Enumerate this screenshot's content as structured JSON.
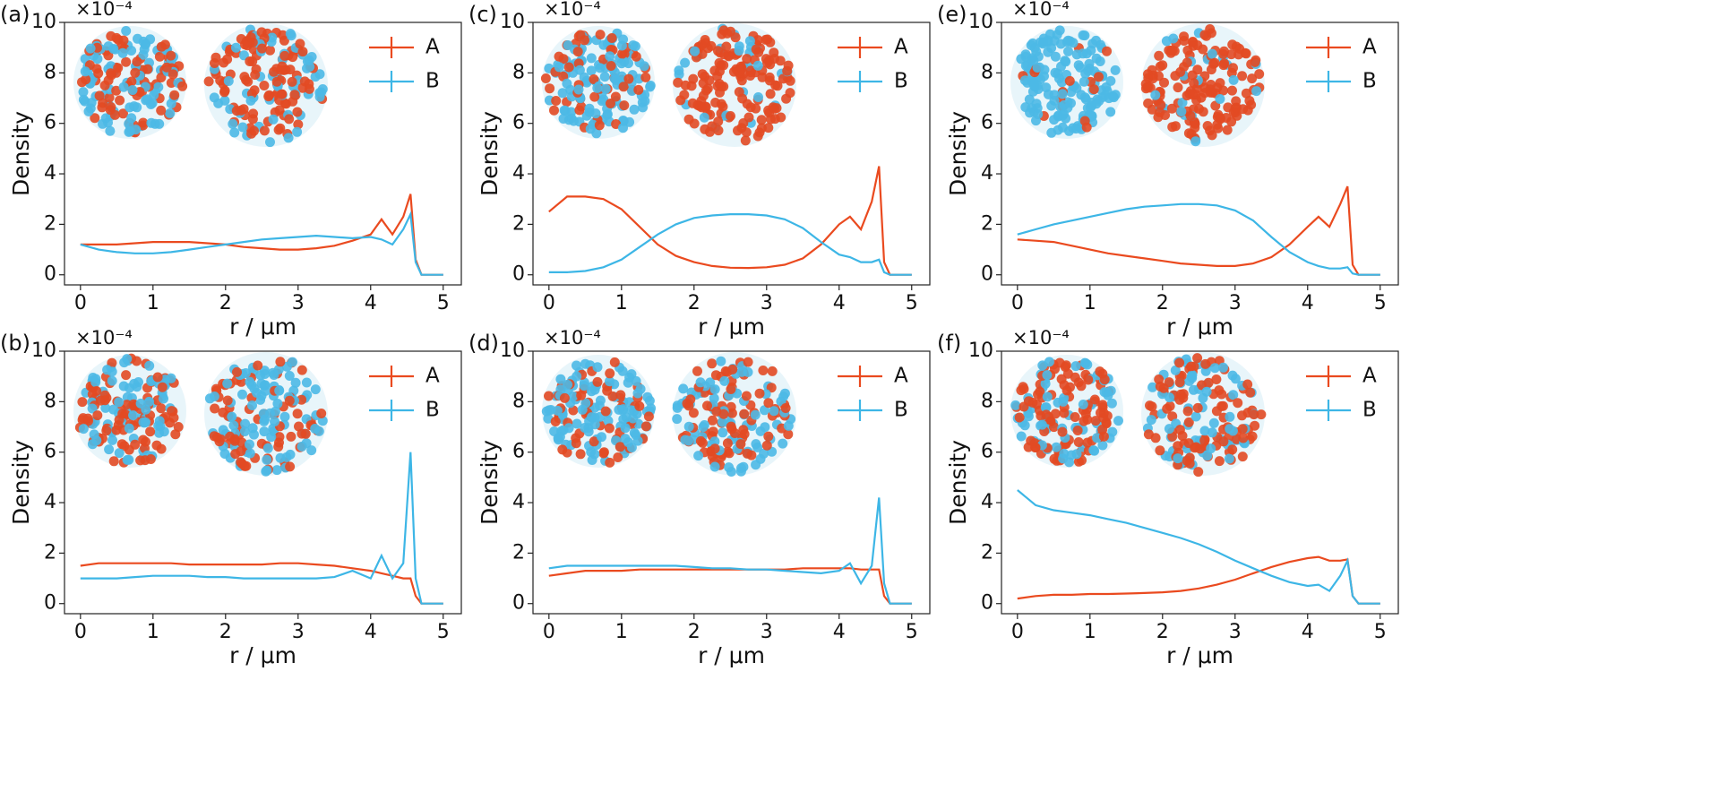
{
  "chart_data": [
    {
      "type": "line",
      "label": "(a)",
      "y_offset": "×10⁻⁴",
      "xlabel": "r / μm",
      "ylabel": "Density",
      "x": [
        0,
        0.25,
        0.5,
        0.75,
        1,
        1.25,
        1.5,
        1.75,
        2,
        2.25,
        2.5,
        2.75,
        3,
        3.25,
        3.5,
        3.75,
        4,
        4.15,
        4.3,
        4.45,
        4.55,
        4.62,
        4.7,
        5
      ],
      "series": [
        {
          "name": "A",
          "color": "#ea4a1f",
          "values": [
            1.2,
            1.2,
            1.2,
            1.25,
            1.3,
            1.3,
            1.3,
            1.25,
            1.2,
            1.1,
            1.05,
            1.0,
            1.0,
            1.05,
            1.15,
            1.35,
            1.6,
            2.2,
            1.6,
            2.3,
            3.2,
            0.6,
            0,
            0
          ]
        },
        {
          "name": "B",
          "color": "#3db6e6",
          "values": [
            1.2,
            1.0,
            0.9,
            0.85,
            0.85,
            0.9,
            1.0,
            1.1,
            1.2,
            1.3,
            1.4,
            1.45,
            1.5,
            1.55,
            1.5,
            1.45,
            1.5,
            1.4,
            1.2,
            1.8,
            2.4,
            0.5,
            0,
            0
          ]
        }
      ],
      "xlim": [
        -0.22,
        5.25
      ],
      "ylim": [
        -0.4,
        10
      ],
      "xticks": [
        0,
        1,
        2,
        3,
        4,
        5
      ],
      "yticks": [
        0,
        2,
        4,
        6,
        8,
        10
      ],
      "legend": "upper right"
    },
    {
      "type": "line",
      "label": "(c)",
      "y_offset": "×10⁻⁴",
      "xlabel": "r / μm",
      "ylabel": "Density",
      "x": [
        0,
        0.25,
        0.5,
        0.75,
        1,
        1.25,
        1.5,
        1.75,
        2,
        2.25,
        2.5,
        2.75,
        3,
        3.25,
        3.5,
        3.75,
        4,
        4.15,
        4.3,
        4.45,
        4.55,
        4.62,
        4.7,
        5
      ],
      "series": [
        {
          "name": "A",
          "color": "#ea4a1f",
          "values": [
            2.5,
            3.1,
            3.1,
            3.0,
            2.6,
            1.9,
            1.2,
            0.75,
            0.5,
            0.35,
            0.28,
            0.27,
            0.3,
            0.4,
            0.65,
            1.2,
            2.0,
            2.3,
            1.8,
            2.9,
            4.3,
            0.5,
            0,
            0
          ]
        },
        {
          "name": "B",
          "color": "#3db6e6",
          "values": [
            0.1,
            0.1,
            0.15,
            0.3,
            0.6,
            1.1,
            1.6,
            2.0,
            2.25,
            2.35,
            2.4,
            2.4,
            2.35,
            2.2,
            1.85,
            1.3,
            0.8,
            0.7,
            0.5,
            0.5,
            0.6,
            0.1,
            0,
            0
          ]
        }
      ],
      "xlim": [
        -0.22,
        5.25
      ],
      "ylim": [
        -0.4,
        10
      ],
      "xticks": [
        0,
        1,
        2,
        3,
        4,
        5
      ],
      "yticks": [
        0,
        2,
        4,
        6,
        8,
        10
      ],
      "legend": "upper right"
    },
    {
      "type": "line",
      "label": "(e)",
      "y_offset": "×10⁻⁴",
      "xlabel": "r / μm",
      "ylabel": "Density",
      "x": [
        0,
        0.25,
        0.5,
        0.75,
        1,
        1.25,
        1.5,
        1.75,
        2,
        2.25,
        2.5,
        2.75,
        3,
        3.25,
        3.5,
        3.75,
        4,
        4.15,
        4.3,
        4.45,
        4.55,
        4.62,
        4.7,
        5
      ],
      "series": [
        {
          "name": "A",
          "color": "#ea4a1f",
          "values": [
            1.4,
            1.35,
            1.3,
            1.15,
            1.0,
            0.85,
            0.75,
            0.65,
            0.55,
            0.45,
            0.4,
            0.35,
            0.35,
            0.45,
            0.7,
            1.2,
            1.9,
            2.3,
            1.9,
            2.8,
            3.5,
            0.4,
            0,
            0
          ]
        },
        {
          "name": "B",
          "color": "#3db6e6",
          "values": [
            1.6,
            1.8,
            2.0,
            2.15,
            2.3,
            2.45,
            2.6,
            2.7,
            2.75,
            2.8,
            2.8,
            2.75,
            2.55,
            2.15,
            1.5,
            0.9,
            0.5,
            0.35,
            0.25,
            0.25,
            0.3,
            0.05,
            0,
            0
          ]
        }
      ],
      "xlim": [
        -0.22,
        5.25
      ],
      "ylim": [
        -0.4,
        10
      ],
      "xticks": [
        0,
        1,
        2,
        3,
        4,
        5
      ],
      "yticks": [
        0,
        2,
        4,
        6,
        8,
        10
      ],
      "legend": "upper right"
    },
    {
      "type": "line",
      "label": "(b)",
      "y_offset": "×10⁻⁴",
      "xlabel": "r / μm",
      "ylabel": "Density",
      "x": [
        0,
        0.25,
        0.5,
        0.75,
        1,
        1.25,
        1.5,
        1.75,
        2,
        2.25,
        2.5,
        2.75,
        3,
        3.25,
        3.5,
        3.75,
        4,
        4.15,
        4.3,
        4.45,
        4.55,
        4.62,
        4.7,
        5
      ],
      "series": [
        {
          "name": "A",
          "color": "#ea4a1f",
          "values": [
            1.5,
            1.6,
            1.6,
            1.6,
            1.6,
            1.6,
            1.55,
            1.55,
            1.55,
            1.55,
            1.55,
            1.6,
            1.6,
            1.55,
            1.5,
            1.4,
            1.3,
            1.2,
            1.1,
            1.0,
            1.0,
            0.3,
            0,
            0
          ]
        },
        {
          "name": "B",
          "color": "#3db6e6",
          "values": [
            1.0,
            1.0,
            1.0,
            1.05,
            1.1,
            1.1,
            1.1,
            1.05,
            1.05,
            1.0,
            1.0,
            1.0,
            1.0,
            1.0,
            1.05,
            1.3,
            1.0,
            1.9,
            1.0,
            1.6,
            6.0,
            1.0,
            0,
            0
          ]
        }
      ],
      "xlim": [
        -0.22,
        5.25
      ],
      "ylim": [
        -0.4,
        10
      ],
      "xticks": [
        0,
        1,
        2,
        3,
        4,
        5
      ],
      "yticks": [
        0,
        2,
        4,
        6,
        8,
        10
      ],
      "legend": "upper right"
    },
    {
      "type": "line",
      "label": "(d)",
      "y_offset": "×10⁻⁴",
      "xlabel": "r / μm",
      "ylabel": "Density",
      "x": [
        0,
        0.25,
        0.5,
        0.75,
        1,
        1.25,
        1.5,
        1.75,
        2,
        2.25,
        2.5,
        2.75,
        3,
        3.25,
        3.5,
        3.75,
        4,
        4.15,
        4.3,
        4.45,
        4.55,
        4.62,
        4.7,
        5
      ],
      "series": [
        {
          "name": "A",
          "color": "#ea4a1f",
          "values": [
            1.1,
            1.2,
            1.3,
            1.3,
            1.3,
            1.35,
            1.35,
            1.35,
            1.35,
            1.35,
            1.35,
            1.35,
            1.35,
            1.35,
            1.4,
            1.4,
            1.4,
            1.4,
            1.35,
            1.35,
            1.35,
            0.3,
            0,
            0
          ]
        },
        {
          "name": "B",
          "color": "#3db6e6",
          "values": [
            1.4,
            1.5,
            1.5,
            1.5,
            1.5,
            1.5,
            1.5,
            1.5,
            1.45,
            1.4,
            1.4,
            1.35,
            1.35,
            1.3,
            1.25,
            1.2,
            1.3,
            1.6,
            0.8,
            1.5,
            4.2,
            0.8,
            0,
            0
          ]
        }
      ],
      "xlim": [
        -0.22,
        5.25
      ],
      "ylim": [
        -0.4,
        10
      ],
      "xticks": [
        0,
        1,
        2,
        3,
        4,
        5
      ],
      "yticks": [
        0,
        2,
        4,
        6,
        8,
        10
      ],
      "legend": "upper right"
    },
    {
      "type": "line",
      "label": "(f)",
      "y_offset": "×10⁻⁴",
      "xlabel": "r / μm",
      "ylabel": "Density",
      "x": [
        0,
        0.25,
        0.5,
        0.75,
        1,
        1.25,
        1.5,
        1.75,
        2,
        2.25,
        2.5,
        2.75,
        3,
        3.25,
        3.5,
        3.75,
        4,
        4.15,
        4.3,
        4.45,
        4.55,
        4.62,
        4.7,
        5
      ],
      "series": [
        {
          "name": "A",
          "color": "#ea4a1f",
          "values": [
            0.2,
            0.3,
            0.35,
            0.35,
            0.38,
            0.38,
            0.4,
            0.42,
            0.45,
            0.5,
            0.6,
            0.75,
            0.95,
            1.2,
            1.45,
            1.65,
            1.8,
            1.85,
            1.7,
            1.7,
            1.75,
            0.3,
            0,
            0
          ]
        },
        {
          "name": "B",
          "color": "#3db6e6",
          "values": [
            4.5,
            3.9,
            3.7,
            3.6,
            3.5,
            3.35,
            3.2,
            3.0,
            2.8,
            2.6,
            2.35,
            2.05,
            1.7,
            1.4,
            1.1,
            0.85,
            0.7,
            0.75,
            0.5,
            1.1,
            1.7,
            0.3,
            0,
            0
          ]
        }
      ],
      "xlim": [
        -0.22,
        5.25
      ],
      "ylim": [
        -0.4,
        10
      ],
      "xticks": [
        0,
        1,
        2,
        3,
        4,
        5
      ],
      "yticks": [
        0,
        2,
        4,
        6,
        8,
        10
      ],
      "legend": "upper right"
    }
  ]
}
